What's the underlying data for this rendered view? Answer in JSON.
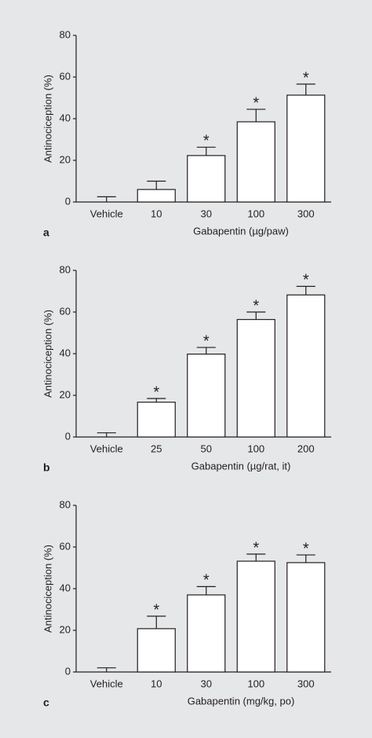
{
  "chart_data": [
    {
      "type": "bar",
      "panel_label": "a",
      "y_label": "Antinociception (%)",
      "x_label": "Gabapentin (µg/paw)",
      "categories": [
        "Vehicle",
        "10",
        "30",
        "100",
        "300"
      ],
      "values": [
        0,
        6,
        22.3,
        38.5,
        51.3
      ],
      "errors": [
        2.5,
        4,
        4,
        6,
        5.3
      ],
      "markers": [
        null,
        null,
        "*",
        "*",
        "*"
      ],
      "color": "#ffffff",
      "ylim": [
        0,
        80
      ],
      "yticks": [
        0,
        20,
        40,
        60,
        80
      ]
    },
    {
      "type": "bar",
      "panel_label": "b",
      "y_label": "Antinociception (%)",
      "x_label": "Gabapentin (µg/rat, it)",
      "categories": [
        "Vehicle",
        "25",
        "50",
        "100",
        "200"
      ],
      "values": [
        0,
        16.7,
        39.8,
        56.4,
        68.2
      ],
      "errors": [
        2,
        1.8,
        3.2,
        3.6,
        4.1
      ],
      "markers": [
        null,
        "*",
        "*",
        "*",
        "*"
      ],
      "color": "#ffffff",
      "ylim": [
        0,
        80
      ],
      "yticks": [
        0,
        20,
        40,
        60,
        80
      ]
    },
    {
      "type": "bar",
      "panel_label": "c",
      "y_label": "Antinociception (%)",
      "x_label": "Gabapentin (mg/kg, po)",
      "categories": [
        "Vehicle",
        "10",
        "30",
        "100",
        "300"
      ],
      "values": [
        0,
        20.8,
        37,
        53.2,
        52.5
      ],
      "errors": [
        2,
        6,
        4,
        3.4,
        3.7
      ],
      "markers": [
        null,
        "*",
        "*",
        "*",
        "*"
      ],
      "color": "#ffffff",
      "ylim": [
        0,
        80
      ],
      "yticks": [
        0,
        20,
        40,
        60,
        80
      ]
    }
  ]
}
